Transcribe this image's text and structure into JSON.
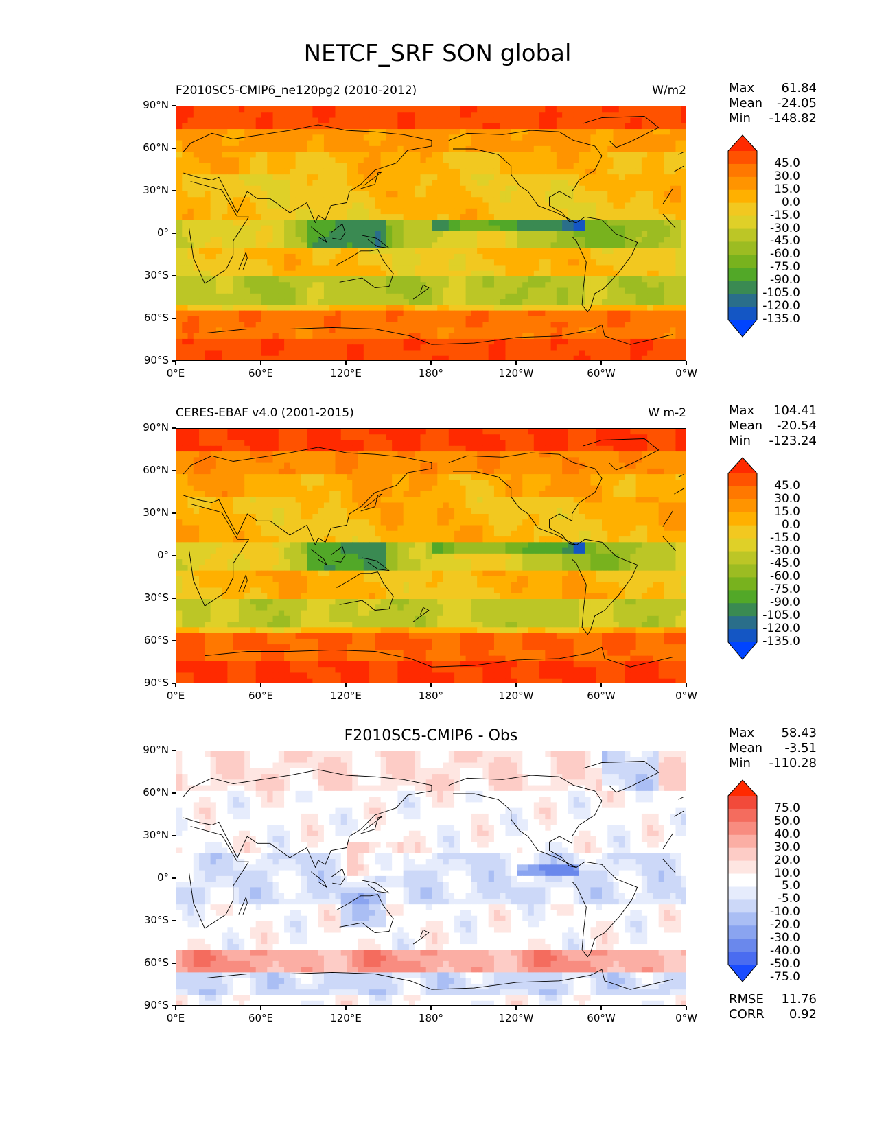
{
  "figure_title": "NETCF_SRF SON global",
  "axes": {
    "lat_ticks": [
      "90°N",
      "60°N",
      "30°N",
      "0°",
      "30°S",
      "60°S",
      "90°S"
    ],
    "lon_ticks": [
      "0°E",
      "60°E",
      "120°E",
      "180°",
      "120°W",
      "60°W",
      "0°W"
    ]
  },
  "panels": [
    {
      "title_left": "F2010SC5-CMIP6_ne120pg2 (2010-2012)",
      "title_right": "W/m2",
      "title_center": "",
      "stats": {
        "max_label": "Max",
        "max": "61.84",
        "mean_label": "Mean",
        "mean": "-24.05",
        "min_label": "Min",
        "min": "-148.82"
      },
      "colorbar": {
        "labels": [
          "45.0",
          "30.0",
          "15.0",
          "0.0",
          "-15.0",
          "-30.0",
          "-45.0",
          "-60.0",
          "-75.0",
          "-90.0",
          "-105.0",
          "-120.0",
          "-135.0"
        ],
        "colors": [
          "#ff2a00",
          "#ff5200",
          "#ff7800",
          "#ff9400",
          "#ffb000",
          "#f2c820",
          "#dfd028",
          "#bcc626",
          "#9cbc22",
          "#78b21e",
          "#52a828",
          "#3a8a52",
          "#2a6e8a",
          "#1456c4",
          "#0044ff"
        ]
      }
    },
    {
      "title_left": "CERES-EBAF v4.0 (2001-2015)",
      "title_right": "W m-2",
      "title_center": "",
      "stats": {
        "max_label": "Max",
        "max": "104.41",
        "mean_label": "Mean",
        "mean": "-20.54",
        "min_label": "Min",
        "min": "-123.24"
      },
      "colorbar": {
        "labels": [
          "45.0",
          "30.0",
          "15.0",
          "0.0",
          "-15.0",
          "-30.0",
          "-45.0",
          "-60.0",
          "-75.0",
          "-90.0",
          "-105.0",
          "-120.0",
          "-135.0"
        ],
        "colors": [
          "#ff2a00",
          "#ff5200",
          "#ff7800",
          "#ff9400",
          "#ffb000",
          "#f2c820",
          "#dfd028",
          "#bcc626",
          "#9cbc22",
          "#78b21e",
          "#52a828",
          "#3a8a52",
          "#2a6e8a",
          "#1456c4",
          "#0044ff"
        ]
      }
    },
    {
      "title_left": "",
      "title_right": "",
      "title_center": "F2010SC5-CMIP6 - Obs",
      "stats": {
        "max_label": "Max",
        "max": "58.43",
        "mean_label": "Mean",
        "mean": "-3.51",
        "min_label": "Min",
        "min": "-110.28"
      },
      "extra_stats": {
        "rmse_label": "RMSE",
        "rmse": "11.76",
        "corr_label": "CORR",
        "corr": "0.92"
      },
      "colorbar": {
        "labels": [
          "75.0",
          "50.0",
          "40.0",
          "30.0",
          "20.0",
          "10.0",
          "5.0",
          "-5.0",
          "-10.0",
          "-20.0",
          "-30.0",
          "-40.0",
          "-50.0",
          "-75.0"
        ],
        "colors": [
          "#ff2a00",
          "#f24a3a",
          "#f46c5e",
          "#f88c80",
          "#fbaea4",
          "#fdccc6",
          "#fee6e2",
          "#ffffff",
          "#e6ecfc",
          "#ccd8f8",
          "#aabef4",
          "#8aa4f0",
          "#6a88ec",
          "#4a6cf0",
          "#1a4cff"
        ]
      }
    }
  ]
}
